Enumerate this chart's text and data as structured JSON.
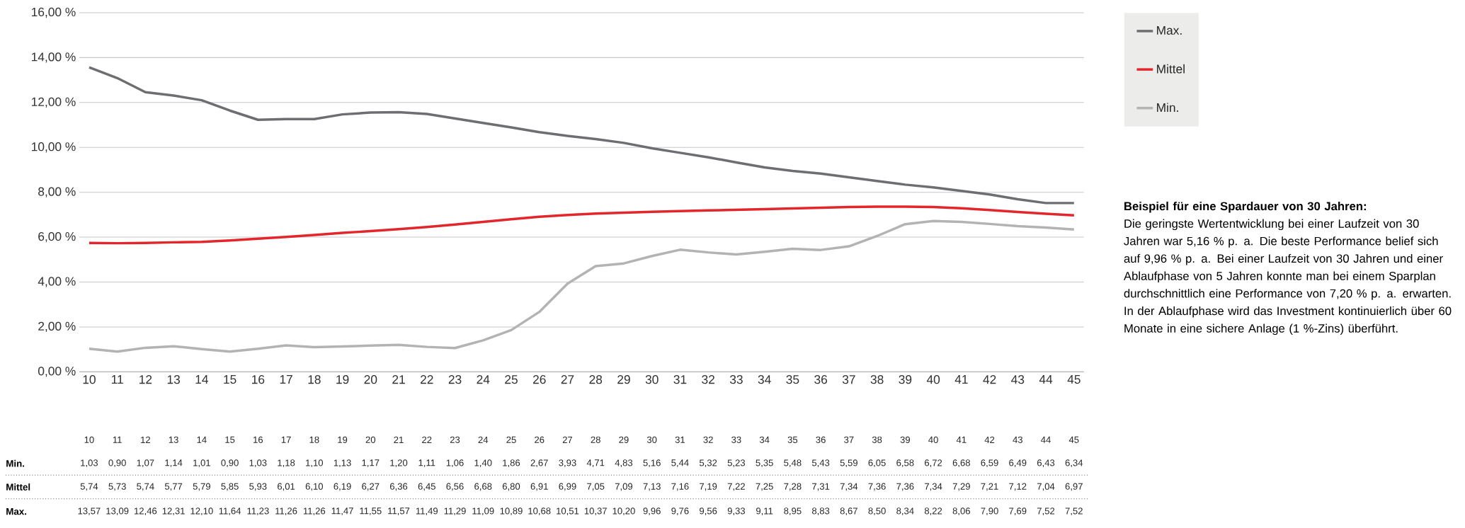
{
  "chart_data": {
    "type": "line",
    "categories": [
      "10",
      "11",
      "12",
      "13",
      "14",
      "15",
      "16",
      "17",
      "18",
      "19",
      "20",
      "21",
      "22",
      "23",
      "24",
      "25",
      "26",
      "27",
      "28",
      "29",
      "30",
      "31",
      "32",
      "33",
      "34",
      "35",
      "36",
      "37",
      "38",
      "39",
      "40",
      "41",
      "42",
      "43",
      "44",
      "45"
    ],
    "series": [
      {
        "name": "Max.",
        "color": "#6d6e71",
        "values": [
          13.57,
          13.09,
          12.46,
          12.31,
          12.1,
          11.64,
          11.23,
          11.26,
          11.26,
          11.47,
          11.55,
          11.57,
          11.49,
          11.29,
          11.09,
          10.89,
          10.68,
          10.51,
          10.37,
          10.2,
          9.96,
          9.76,
          9.56,
          9.33,
          9.11,
          8.95,
          8.83,
          8.67,
          8.5,
          8.34,
          8.22,
          8.06,
          7.9,
          7.69,
          7.52,
          7.52
        ],
        "value_labels": [
          "13,57",
          "13,09",
          "12,46",
          "12,31",
          "12,10",
          "11,64",
          "11,23",
          "11,26",
          "11,26",
          "11,47",
          "11,55",
          "11,57",
          "11,49",
          "11,29",
          "11,09",
          "10,89",
          "10,68",
          "10,51",
          "10,37",
          "10,20",
          "9,96",
          "9,76",
          "9,56",
          "9,33",
          "9,11",
          "8,95",
          "8,83",
          "8,67",
          "8,50",
          "8,34",
          "8,22",
          "8,06",
          "7,90",
          "7,69",
          "7,52",
          "7,52"
        ]
      },
      {
        "name": "Mittel",
        "color": "#e3262b",
        "values": [
          5.74,
          5.73,
          5.74,
          5.77,
          5.79,
          5.85,
          5.93,
          6.01,
          6.1,
          6.19,
          6.27,
          6.36,
          6.45,
          6.56,
          6.68,
          6.8,
          6.91,
          6.99,
          7.05,
          7.09,
          7.13,
          7.16,
          7.19,
          7.22,
          7.25,
          7.28,
          7.31,
          7.34,
          7.36,
          7.36,
          7.34,
          7.29,
          7.21,
          7.12,
          7.04,
          6.97
        ],
        "value_labels": [
          "5,74",
          "5,73",
          "5,74",
          "5,77",
          "5,79",
          "5,85",
          "5,93",
          "6,01",
          "6,10",
          "6,19",
          "6,27",
          "6,36",
          "6,45",
          "6,56",
          "6,68",
          "6,80",
          "6,91",
          "6,99",
          "7,05",
          "7,09",
          "7,13",
          "7,16",
          "7,19",
          "7,22",
          "7,25",
          "7,28",
          "7,31",
          "7,34",
          "7,36",
          "7,36",
          "7,34",
          "7,29",
          "7,21",
          "7,12",
          "7,04",
          "6,97"
        ]
      },
      {
        "name": "Min.",
        "color": "#b3b3b3",
        "values": [
          1.03,
          0.9,
          1.07,
          1.14,
          1.01,
          0.9,
          1.03,
          1.18,
          1.1,
          1.13,
          1.17,
          1.2,
          1.11,
          1.06,
          1.4,
          1.86,
          2.67,
          3.93,
          4.71,
          4.83,
          5.16,
          5.44,
          5.32,
          5.23,
          5.35,
          5.48,
          5.43,
          5.59,
          6.05,
          6.58,
          6.72,
          6.68,
          6.59,
          6.49,
          6.43,
          6.34
        ],
        "value_labels": [
          "1,03",
          "0,90",
          "1,07",
          "1,14",
          "1,01",
          "0,90",
          "1,03",
          "1,18",
          "1,10",
          "1,13",
          "1,17",
          "1,20",
          "1,11",
          "1,06",
          "1,40",
          "1,86",
          "2,67",
          "3,93",
          "4,71",
          "4,83",
          "5,16",
          "5,44",
          "5,32",
          "5,23",
          "5,35",
          "5,48",
          "5,43",
          "5,59",
          "6,05",
          "6,58",
          "6,72",
          "6,68",
          "6,59",
          "6,49",
          "6,43",
          "6,34"
        ]
      }
    ],
    "ylim": [
      0,
      16
    ],
    "yticks": [
      {
        "value": 0,
        "label": "0,00 %"
      },
      {
        "value": 2,
        "label": "2,00 %"
      },
      {
        "value": 4,
        "label": "4,00 %"
      },
      {
        "value": 6,
        "label": "6,00 %"
      },
      {
        "value": 8,
        "label": "8,00 %"
      },
      {
        "value": 10,
        "label": "10,00 %"
      },
      {
        "value": 12,
        "label": "12,00 %"
      },
      {
        "value": 14,
        "label": "14,00 %"
      },
      {
        "value": 16,
        "label": "16,00 %"
      }
    ],
    "grid": "y",
    "legend": "top right",
    "line_style": "solid",
    "annotations": [
      "**Beispiel für eine Spardauer von 30 Jahren:**",
      "Die geringste Wertentwicklung bei einer Laufzeit von 30 Jahren war 5,16 % p. a. Die beste Performance belief sich auf 9,96 % p. a. Bei einer Laufzeit von 30 Jahren und einer Ablaufphase von 5 Jahren konnte man bei einem Sparplan durchschnittlich eine Performance von 7,20 % p. a. erwarten. In der Ablaufphase wird das Investment kontinuierlich über 60 Monate in eine sichere Anlage (1 %-Zins) überführt."
    ]
  }
}
